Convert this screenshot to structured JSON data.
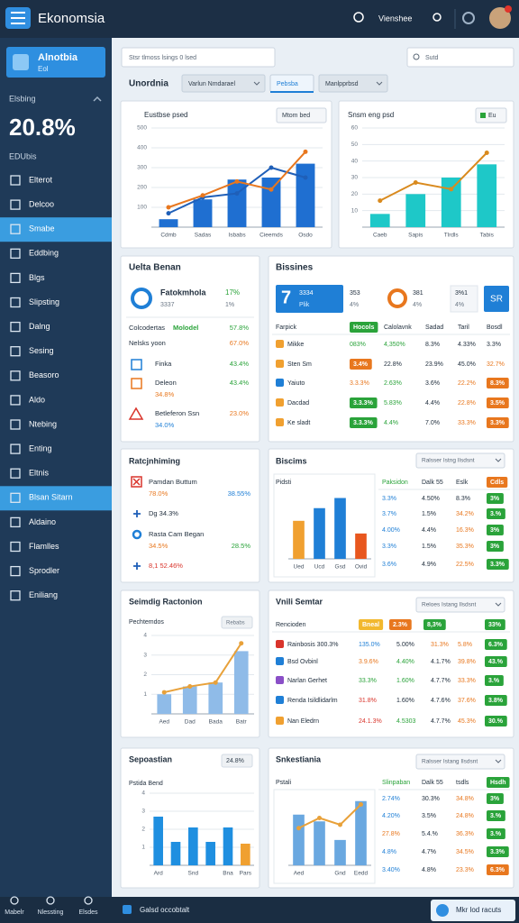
{
  "topbar": {
    "title": "Ekonomsia",
    "user": "Vienshee"
  },
  "sidebar": {
    "card_title": "Alnotbia",
    "card_sub": "Eol",
    "label": "Elsbing",
    "stat": "20.8%",
    "stat_label": "EDUbis",
    "menu": [
      {
        "label": "Elterot"
      },
      {
        "label": "Delcoo"
      },
      {
        "label": "Smabe",
        "active": true
      },
      {
        "label": "Eddbing"
      },
      {
        "label": "Blgs"
      },
      {
        "label": "Slipsting"
      },
      {
        "label": "Dalng"
      },
      {
        "label": "Sesing"
      },
      {
        "label": "Beasoro"
      },
      {
        "label": "Aldo"
      },
      {
        "label": "Ntebing"
      },
      {
        "label": "Enting"
      },
      {
        "label": "Eltnis"
      },
      {
        "label": "Blsan Sitarn",
        "active": true
      },
      {
        "label": "Aldaino"
      },
      {
        "label": "Flamlles"
      },
      {
        "label": "Sprodler"
      },
      {
        "label": "Eniliang"
      }
    ]
  },
  "bottombar": {
    "items": [
      "Mabelr",
      "Nlessting",
      "Elsdes"
    ],
    "status": "Galsd occobtalt",
    "action": "Mkr lod racuts"
  },
  "search": {
    "left": "Stsr tlmoss lsings 0 lsed",
    "right": "Sutd"
  },
  "tabs": [
    {
      "label": "Unordnia"
    },
    {
      "label": "Varlun Nmdarael"
    },
    {
      "label": "Pebsba",
      "active": true
    },
    {
      "label": "Manlpprbsd"
    }
  ],
  "revenue_chart": {
    "title": "Eustbse psed",
    "button": "Mtom bed",
    "categories": [
      "Cdmb",
      "Sadas",
      "Isbabs",
      "Cieemds",
      "Osdo"
    ],
    "ylim": [
      0,
      500
    ],
    "yticks": [
      100,
      200,
      300,
      400,
      500
    ],
    "series": [
      {
        "type": "bar",
        "color": "#1f6fd1",
        "values": [
          40,
          140,
          240,
          250,
          320
        ]
      },
      {
        "type": "line",
        "color": "#1f5fb8",
        "values": [
          70,
          150,
          170,
          300,
          250
        ]
      },
      {
        "type": "line",
        "color": "#e8771e",
        "values": [
          100,
          160,
          230,
          190,
          380
        ]
      }
    ]
  },
  "growth_chart": {
    "title": "Snsm eng psd",
    "button": "Eu",
    "categories": [
      "Caeb",
      "Sapis",
      "Tlrdls",
      "Tabis"
    ],
    "ylim": [
      0,
      60
    ],
    "yticks": [
      10,
      20,
      30,
      40,
      50,
      60
    ],
    "series": [
      {
        "type": "bar",
        "color": "#1ec8c8",
        "values": [
          8,
          20,
          30,
          38
        ]
      },
      {
        "type": "line",
        "color": "#d98a1e",
        "values": [
          16,
          27,
          23,
          45
        ]
      }
    ]
  },
  "summary": {
    "title": "Uelta Benan",
    "head": {
      "name": "Fatokmhola",
      "sub": "3337",
      "pct": "17%",
      "pct2": "1%"
    },
    "rows": [
      {
        "label": "Colcodertas",
        "tag": "Molodel",
        "value": "57.8%"
      },
      {
        "label": "Nelsks yoon",
        "value": "67.0%"
      }
    ],
    "items": [
      {
        "label": "Finka",
        "value": "43.4%",
        "icon": "#1f7fd6",
        "shape": "square"
      },
      {
        "label": "Deleon",
        "sub": "34.8%",
        "value": "43.4%",
        "icon": "#e8771e",
        "shape": "square"
      },
      {
        "label": "Betleferon Ssn",
        "sub": "34.0%",
        "value": "23.0%",
        "icon": "#d9342b",
        "shape": "triangle"
      }
    ]
  },
  "business": {
    "title": "Bissines",
    "cards": [
      {
        "big": "7",
        "a": "3334",
        "b": "Plik"
      },
      {
        "a": "353",
        "b": "4%"
      },
      {
        "a": "381",
        "b": "4%"
      },
      {
        "a": "3%1",
        "b": "4%"
      },
      {
        "a": "SR"
      }
    ],
    "table": {
      "header": [
        "Farpick",
        {
          "text": "Hocols",
          "chip": "#2aa33a"
        },
        "Calolavnk",
        "Sadad",
        "Taril",
        "Bosdl"
      ],
      "rows": [
        [
          {
            "text": "Mikke",
            "icon": "#f0a030"
          },
          {
            "text": "083%",
            "tone": "#2aa33a"
          },
          {
            "text": "4,350%",
            "tone": "#2aa33a"
          },
          "8.3%",
          "4.33%",
          "3.3%"
        ],
        [
          {
            "text": "Sten Sm",
            "icon": "#f0a030"
          },
          {
            "text": "3.4%",
            "chip": "#e8771e"
          },
          "22.8%",
          "23.9%",
          "45.0%",
          {
            "text": "32.7%",
            "tone": "#e8771e"
          }
        ],
        [
          {
            "text": "Yaiuto",
            "icon": "#1f7fd6"
          },
          {
            "text": "3.3.3%",
            "tone": "#e8771e"
          },
          {
            "text": "2.63%",
            "tone": "#2aa33a"
          },
          "3.6%",
          {
            "text": "22.2%",
            "tone": "#e8771e"
          },
          {
            "text": "8.3%",
            "chip": "#e8771e"
          }
        ],
        [
          {
            "text": "Dacdad",
            "icon": "#f0a030"
          },
          {
            "text": "3.3.3%",
            "chip": "#2aa33a"
          },
          {
            "text": "5.83%",
            "tone": "#2aa33a"
          },
          "4.4%",
          {
            "text": "22.8%",
            "tone": "#e8771e"
          },
          {
            "text": "3.5%",
            "chip": "#e8771e"
          }
        ],
        [
          {
            "text": "Ke sladt",
            "icon": "#f0a030"
          },
          {
            "text": "3.3.3%",
            "chip": "#2aa33a"
          },
          {
            "text": "4.4%",
            "tone": "#2aa33a"
          },
          "7.0%",
          {
            "text": "33.3%",
            "tone": "#e8771e"
          },
          {
            "text": "3.3%",
            "chip": "#e8771e"
          }
        ]
      ]
    }
  },
  "ranking": {
    "title": "Ratcjnhiming",
    "items": [
      {
        "label": "Pamdan Buttum",
        "sub": "78.0%",
        "value": "38.55%",
        "value_tone": "#1f7fd6",
        "icon": "x"
      },
      {
        "label": "Dg 34.3%",
        "icon": "plus"
      },
      {
        "label": "Rasta Cam Began",
        "sub": "34.5%",
        "value": "28.5%",
        "value_tone": "#2aa33a",
        "icon": "gear"
      },
      {
        "label": "8,1 52.46%",
        "icon": "plus",
        "tone": "#d9342b"
      }
    ]
  },
  "biscims": {
    "title": "Biscims",
    "dropdown": "Ralsser Istng Ilsdsnt",
    "chart_label": "Pidsti",
    "chart": {
      "categories": [
        "Ued",
        "Ucd",
        "Gsd",
        "Ovid"
      ],
      "ylim": [
        0,
        80
      ],
      "series": [
        {
          "type": "bar",
          "colors": [
            "#f0a030",
            "#1f7fd6",
            "#1f7fd6",
            "#e8571e"
          ],
          "values": [
            45,
            60,
            72,
            30
          ]
        }
      ]
    },
    "table": {
      "header": [
        {
          "text": "Paksidon",
          "tone": "#2aa33a"
        },
        "Dalk 55",
        "Eslk",
        {
          "text": "Cdls",
          "chip": "#e8771e"
        }
      ],
      "rows": [
        [
          {
            "text": "3.3%",
            "tone": "#1f7fd6"
          },
          "4.50%",
          "8.3%",
          {
            "text": "3%",
            "chip": "#2aa33a"
          }
        ],
        [
          {
            "text": "3.7%",
            "tone": "#1f7fd6"
          },
          "1.5%",
          {
            "text": "34.2%",
            "tone": "#e8771e"
          },
          {
            "text": "3.%",
            "chip": "#2aa33a"
          }
        ],
        [
          {
            "text": "4.00%",
            "tone": "#1f7fd6"
          },
          "4.4%",
          {
            "text": "16.3%",
            "tone": "#e8771e"
          },
          {
            "text": "3%",
            "chip": "#2aa33a"
          }
        ],
        [
          {
            "text": "3.3%",
            "tone": "#1f7fd6"
          },
          "1.5%",
          {
            "text": "35.3%",
            "tone": "#e8771e"
          },
          {
            "text": "3%",
            "chip": "#2aa33a"
          }
        ],
        [
          {
            "text": "3.6%",
            "tone": "#1f7fd6"
          },
          "4.9%",
          {
            "text": "22.5%",
            "tone": "#e8771e"
          },
          {
            "text": "3.3%",
            "chip": "#2aa33a"
          }
        ]
      ]
    }
  },
  "trend": {
    "title": "Seimdig Ractonion",
    "label": "Pechtemdos",
    "button": "Rebabs",
    "chart": {
      "categories": [
        "Aed",
        "Dad",
        "Bada",
        "Batr"
      ],
      "ylim": [
        0,
        4
      ],
      "yticks": [
        1,
        2,
        3,
        4
      ],
      "series": [
        {
          "type": "bar",
          "color": "#8fbbe8",
          "values": [
            1,
            1.4,
            1.6,
            3.2
          ]
        },
        {
          "type": "line",
          "color": "#e8a13a",
          "values": [
            1.1,
            1.4,
            1.6,
            3.6
          ]
        }
      ]
    }
  },
  "semtar": {
    "title": "Vnili Semtar",
    "dropdown": "Reloes Istang Ilsdsnt",
    "table": {
      "header": [
        "Rencioden",
        {
          "text": "Bneal",
          "chip": "#f2b82e"
        },
        {
          "text": "2.3%",
          "chip": "#e8771e"
        },
        {
          "text": "8,3%",
          "chip": "#2aa33a"
        },
        {
          "text": "33%",
          "chip": "#2aa33a"
        }
      ],
      "rows": [
        [
          {
            "text": "Rainbosis 300.3%",
            "icon": "#d9342b"
          },
          {
            "text": "135.0%",
            "tone": "#1f7fd6"
          },
          "5.00%",
          {
            "text": "31.3%",
            "tone": "#e8771e"
          },
          {
            "text": "5.8%",
            "tone": "#e8771e"
          },
          {
            "text": "6.3%",
            "chip": "#2aa33a"
          }
        ],
        [
          {
            "text": "Bsd Ovbinl",
            "icon": "#1f7fd6"
          },
          {
            "text": "3.9.6%",
            "tone": "#e8771e"
          },
          {
            "text": "4.40%",
            "tone": "#2aa33a"
          },
          "4.1.7%",
          {
            "text": "39.8%",
            "tone": "#e8771e"
          },
          {
            "text": "43.%",
            "chip": "#2aa33a"
          }
        ],
        [
          {
            "text": "Narlan Gerhet",
            "icon": "#8a4fc7"
          },
          {
            "text": "33.3%",
            "tone": "#2aa33a"
          },
          {
            "text": "1.60%",
            "tone": "#2aa33a"
          },
          "4.7.7%",
          {
            "text": "33.3%",
            "tone": "#e8771e"
          },
          {
            "text": "3.%",
            "chip": "#2aa33a"
          }
        ],
        [
          {
            "text": "Renda Isildlidarlm",
            "icon": "#1f7fd6"
          },
          {
            "text": "31.8%",
            "tone": "#d9342b"
          },
          "1.60%",
          "4.7.6%",
          {
            "text": "37.6%",
            "tone": "#e8771e"
          },
          {
            "text": "3.8%",
            "chip": "#2aa33a"
          }
        ],
        [
          {
            "text": "Nan Eledrn",
            "icon": "#f0a030"
          },
          {
            "text": "24.1.3%",
            "tone": "#d9342b"
          },
          {
            "text": "4.5303",
            "tone": "#2aa33a"
          },
          "4.7.7%",
          {
            "text": "45.3%",
            "tone": "#e8771e"
          },
          {
            "text": "30.%",
            "chip": "#2aa33a"
          }
        ]
      ]
    }
  },
  "season": {
    "title": "Sepoastian",
    "tag": "24.8%",
    "label": "Pstida Bend",
    "chart": {
      "categories": [
        "Ard",
        null,
        "Snd",
        null,
        "Bna",
        "Pars"
      ],
      "ylim": [
        0,
        4
      ],
      "yticks": [
        1,
        2,
        3,
        4
      ],
      "series": [
        {
          "type": "bar",
          "colors": [
            "#1f8fe0",
            "#1f8fe0",
            "#1f8fe0",
            "#1f8fe0",
            "#1f8fe0",
            "#f0a030"
          ],
          "values": [
            2.7,
            1.3,
            2.1,
            1.3,
            2.1,
            1.2
          ]
        }
      ]
    }
  },
  "stakes": {
    "title": "Snkestiania",
    "dropdown": "Ralsser Istang Ilsdsnt",
    "chart_label": "Pstali",
    "chart": {
      "categories": [
        "Aed",
        null,
        "Gnd",
        "Eedd"
      ],
      "ylim": [
        0,
        4
      ],
      "series": [
        {
          "type": "bar",
          "color": "#6aa8e0",
          "values": [
            3,
            2.6,
            1.5,
            3.8
          ]
        },
        {
          "type": "line",
          "color": "#e8a13a",
          "values": [
            2.2,
            2.8,
            2.4,
            3.6
          ]
        }
      ]
    },
    "table": {
      "header": [
        {
          "text": "Slinpaban",
          "tone": "#2aa33a"
        },
        "Dalk 55",
        "tsdls",
        {
          "text": "Hsdh",
          "chip": "#2aa33a"
        }
      ],
      "rows": [
        [
          {
            "text": "2.74%",
            "tone": "#1f7fd6"
          },
          "30.3%",
          {
            "text": "34.8%",
            "tone": "#e8771e"
          },
          {
            "text": "3%",
            "chip": "#2aa33a"
          }
        ],
        [
          {
            "text": "4.20%",
            "tone": "#1f7fd6"
          },
          "3.5%",
          {
            "text": "24.8%",
            "tone": "#e8771e"
          },
          {
            "text": "3.%",
            "chip": "#2aa33a"
          }
        ],
        [
          {
            "text": "27.8%",
            "tone": "#e8771e"
          },
          "5.4.%",
          {
            "text": "36.3%",
            "tone": "#e8771e"
          },
          {
            "text": "3.%",
            "chip": "#2aa33a"
          }
        ],
        [
          {
            "text": "4.8%",
            "tone": "#1f7fd6"
          },
          "4.7%",
          {
            "text": "34.5%",
            "tone": "#e8771e"
          },
          {
            "text": "3.3%",
            "chip": "#2aa33a"
          }
        ],
        [
          {
            "text": "3.40%",
            "tone": "#1f7fd6"
          },
          "4.8%",
          {
            "text": "23.3%",
            "tone": "#e8771e"
          },
          {
            "text": "6.3%",
            "chip": "#e8771e"
          }
        ]
      ]
    }
  }
}
